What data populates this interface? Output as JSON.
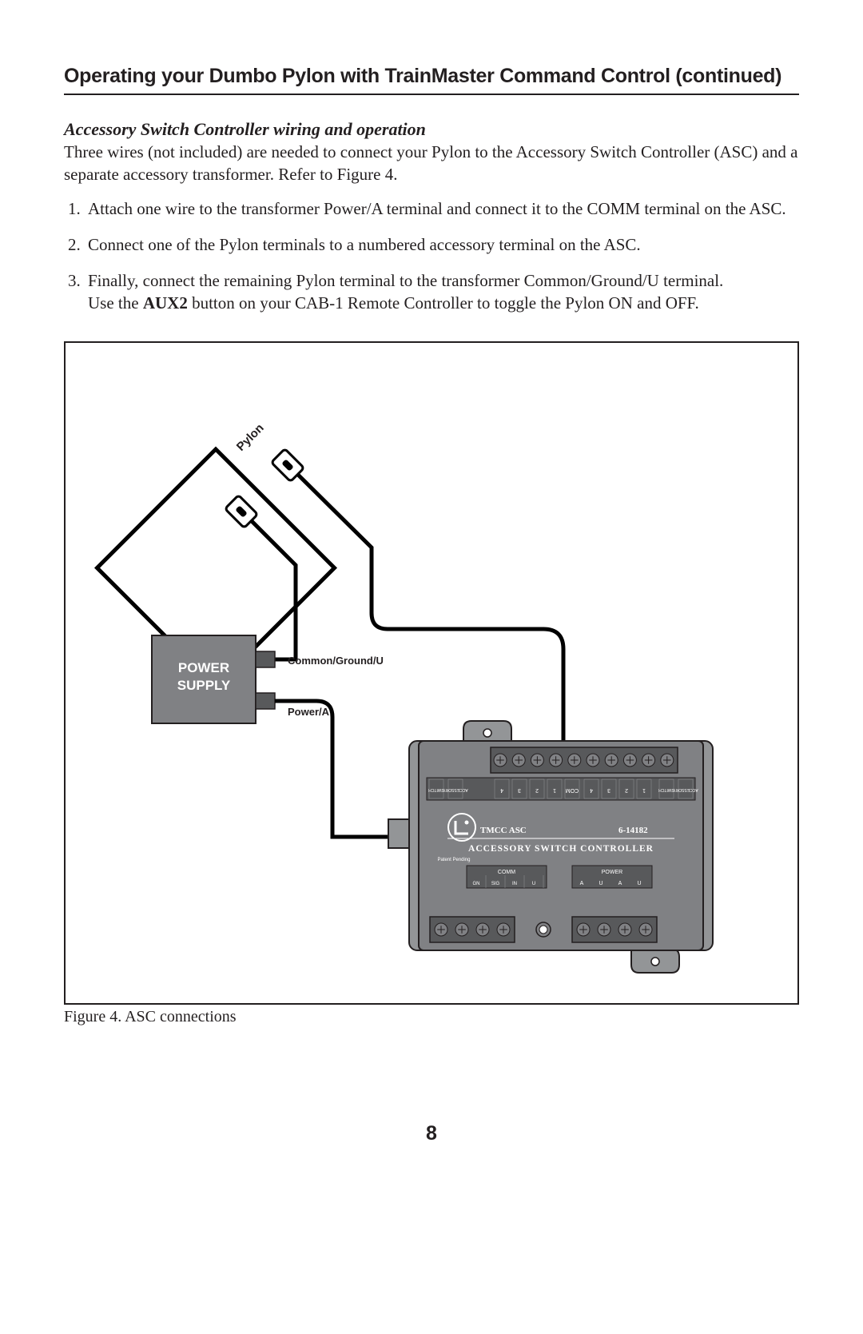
{
  "page": {
    "title": "Operating your Dumbo Pylon with TrainMaster Command Control (continued)",
    "subheading": "Accessory Switch Controller wiring and operation",
    "intro": "Three wires (not included) are needed to connect your Pylon to the Accessory Switch Controller (ASC) and a separate accessory transformer. Refer to Figure 4.",
    "step1": "Attach one wire to the transformer Power/A terminal and connect it to the COMM terminal on the ASC.",
    "step2": "Connect one of the Pylon terminals to a numbered accessory terminal on the ASC.",
    "step3a": "Finally, connect the remaining Pylon terminal to the transformer Common/Ground/U terminal.",
    "step3b_pre": "Use the ",
    "step3b_bold": "AUX2",
    "step3b_post": " button on your CAB-1 Remote Controller to toggle the Pylon ON and OFF.",
    "figure_caption": "Figure 4. ASC connections",
    "page_number": "8"
  },
  "diagram": {
    "pylon_label": "Pylon",
    "power_supply_line1": "POWER",
    "power_supply_line2": "SUPPLY",
    "terminal1_label": "Common/Ground/U",
    "terminal2_label": "Power/A",
    "asc_tmcc": "TMCC  ASC",
    "asc_partno": "6-14182",
    "asc_text": "ACCESSORY  SWITCH  CONTROLLER",
    "asc_patent": "Patent Pending",
    "asc_comm_label": "COMM",
    "asc_power_label": "POWER",
    "asc_switch_label": "SWITCH",
    "asc_accessory_label": "ACCESSORY",
    "colors": {
      "border": "#231f20",
      "ps_fill": "#808184",
      "asc_fill": "#808184",
      "asc_plate_fill": "#939597",
      "asc_dark": "#58595b",
      "wire": "#000000",
      "white": "#ffffff"
    },
    "stroke_widths": {
      "outer_border": 2,
      "pylon": 5,
      "wire": 5,
      "asc_outline": 2
    }
  }
}
